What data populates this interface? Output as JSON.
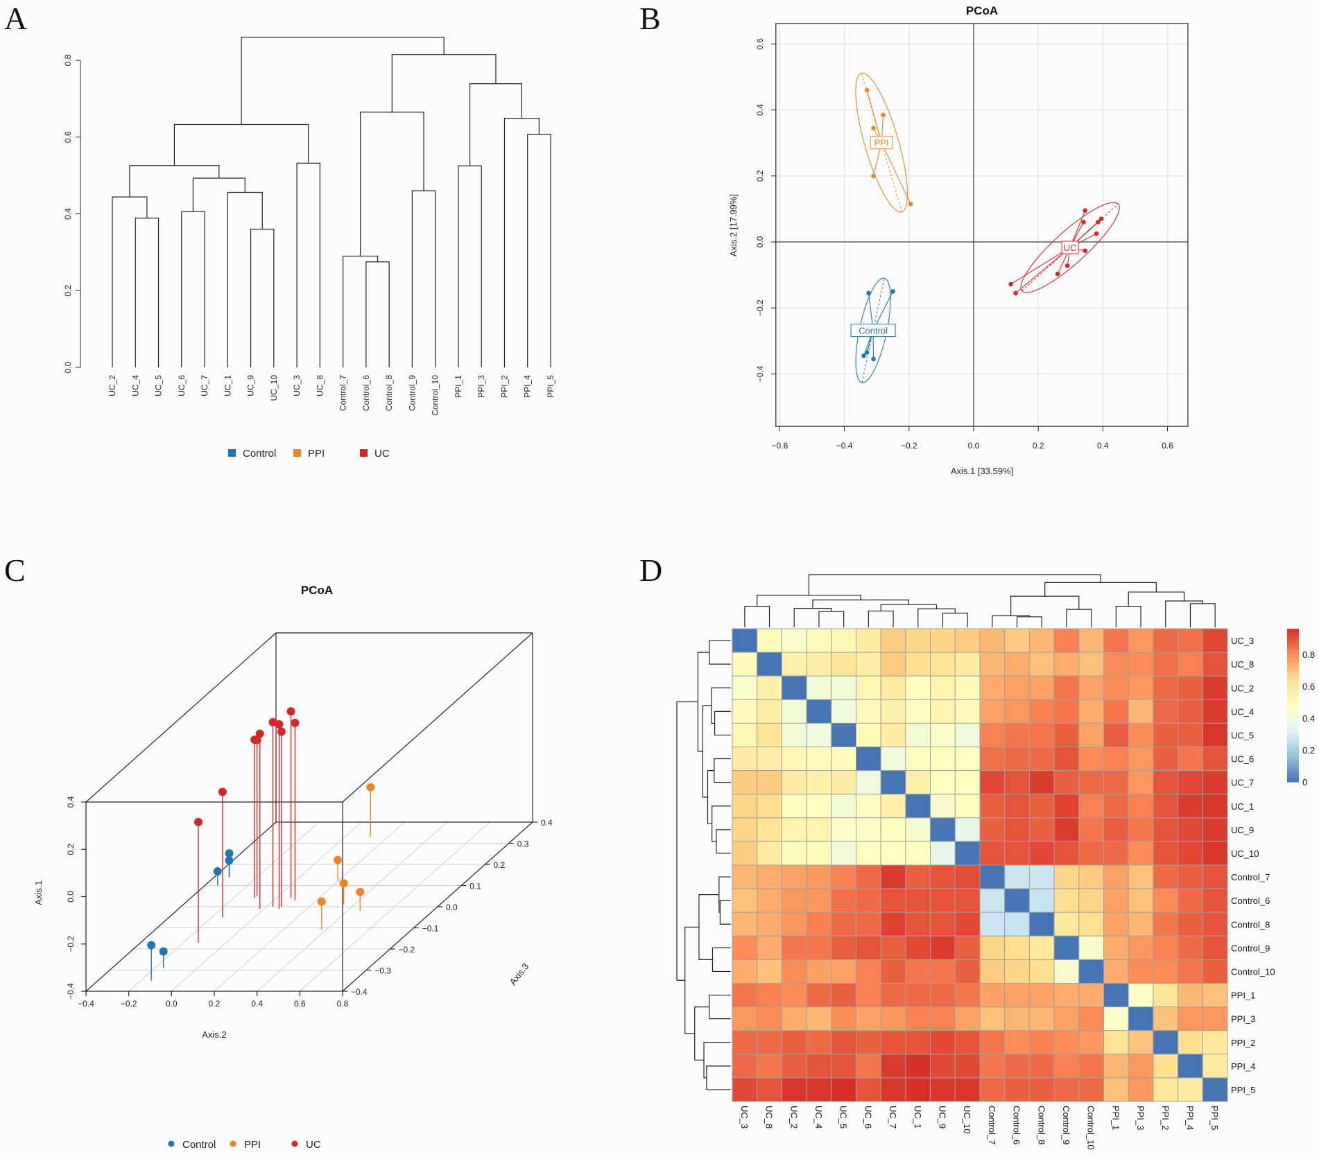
{
  "panels": {
    "a": "A",
    "b": "B",
    "c": "C",
    "d": "D"
  },
  "groups": [
    {
      "name": "Control",
      "color": "#1f77b4"
    },
    {
      "name": "PPI",
      "color": "#ef8426"
    },
    {
      "name": "UC",
      "color": "#d62728"
    }
  ],
  "chart_data": [
    {
      "type": "dendrogram",
      "ylim": [
        0,
        0.8
      ],
      "yticks": [
        0.0,
        0.2,
        0.4,
        0.6,
        0.8
      ],
      "leaves": [
        "UC_2",
        "UC_4",
        "UC_5",
        "UC_6",
        "UC_7",
        "UC_1",
        "UC_9",
        "UC_10",
        "UC_3",
        "UC_8",
        "Control_7",
        "Control_6",
        "Control_8",
        "Control_9",
        "Control_10",
        "PPI_1",
        "PPI_3",
        "PPI_2",
        "PPI_4",
        "PPI_5"
      ],
      "merges": [
        [
          "UC_4",
          "UC_5",
          0.389
        ],
        [
          "UC_2",
          0,
          0.444
        ],
        [
          "UC_6",
          "UC_7",
          0.406
        ],
        [
          "UC_9",
          "UC_10",
          0.36
        ],
        [
          "UC_1",
          3,
          0.456
        ],
        [
          2,
          4,
          0.493
        ],
        [
          1,
          5,
          0.526
        ],
        [
          "UC_3",
          "UC_8",
          0.532
        ],
        [
          6,
          7,
          0.633
        ],
        [
          "Control_6",
          "Control_8",
          0.275
        ],
        [
          "Control_7",
          9,
          0.29
        ],
        [
          "Control_9",
          "Control_10",
          0.46
        ],
        [
          10,
          11,
          0.665
        ],
        [
          "PPI_1",
          "PPI_3",
          0.525
        ],
        [
          "PPI_4",
          "PPI_5",
          0.607
        ],
        [
          "PPI_2",
          14,
          0.649
        ],
        [
          13,
          15,
          0.739
        ],
        [
          12,
          16,
          0.815
        ],
        [
          8,
          17,
          0.86
        ]
      ],
      "legend": [
        "Control",
        "PPI",
        "UC"
      ]
    },
    {
      "type": "scatter",
      "title": "PCoA",
      "xlabel": "Axis.1  [33.59%]",
      "ylabel": "Axis.2  [17.99%]",
      "xlim": [
        -0.612,
        0.663
      ],
      "ylim": [
        -0.559,
        0.662
      ],
      "xticks": [
        -0.6,
        -0.4,
        -0.2,
        0.0,
        0.2,
        0.4,
        0.6
      ],
      "yticks": [
        -0.4,
        -0.2,
        0.0,
        0.2,
        0.4,
        0.6
      ],
      "grid": true,
      "series": [
        {
          "name": "PPI",
          "points": [
            [
              -0.33,
              0.46
            ],
            [
              -0.28,
              0.385
            ],
            [
              -0.31,
              0.345
            ],
            [
              -0.31,
              0.2
            ],
            [
              -0.195,
              0.115
            ]
          ]
        },
        {
          "name": "UC",
          "points": [
            [
              0.345,
              0.095
            ],
            [
              0.34,
              0.06
            ],
            [
              0.385,
              0.06
            ],
            [
              0.395,
              0.07
            ],
            [
              0.38,
              0.025
            ],
            [
              0.345,
              -0.027
            ],
            [
              0.29,
              -0.072
            ],
            [
              0.26,
              -0.097
            ],
            [
              0.115,
              -0.128
            ],
            [
              0.13,
              -0.155
            ]
          ]
        },
        {
          "name": "Control",
          "points": [
            [
              -0.325,
              -0.155
            ],
            [
              -0.25,
              -0.15
            ],
            [
              -0.34,
              -0.345
            ],
            [
              -0.33,
              -0.335
            ],
            [
              -0.31,
              -0.355
            ]
          ]
        }
      ]
    },
    {
      "type": "scatter3d",
      "title": "PCoA",
      "xlabel": "Axis.2",
      "ylabel": "Axis.1",
      "zlabel": "Axis.3",
      "xlim": [
        -0.4,
        0.8
      ],
      "ylim": [
        -0.4,
        0.4
      ],
      "zlim": [
        -0.4,
        0.4
      ],
      "xticks": [
        -0.4,
        -0.2,
        0.0,
        0.2,
        0.4,
        0.6,
        0.8
      ],
      "yticks": [
        -0.4,
        -0.2,
        0.0,
        0.2,
        0.4
      ],
      "zticks": [
        -0.4,
        -0.3,
        -0.2,
        -0.1,
        0.0,
        0.1,
        0.2,
        0.3,
        0.4
      ],
      "point_order": "[Axis.2, Axis.1, Axis.3]",
      "series": [
        {
          "name": "Control",
          "points": [
            [
              -0.15,
              -0.25,
              -0.35
            ],
            [
              -0.16,
              -0.33,
              -0.29
            ],
            [
              -0.34,
              -0.34,
              0.1
            ],
            [
              -0.33,
              -0.3,
              0.14
            ],
            [
              -0.33,
              -0.33,
              0.14
            ]
          ]
        },
        {
          "name": "PPI",
          "points": [
            [
              0.12,
              -0.19,
              0.33
            ],
            [
              0.2,
              -0.31,
              0.12
            ],
            [
              0.35,
              -0.31,
              0.01
            ],
            [
              0.46,
              -0.32,
              -0.02
            ],
            [
              0.38,
              -0.28,
              -0.11
            ]
          ]
        },
        {
          "name": "UC",
          "points": [
            [
              -0.13,
              0.11,
              -0.17
            ],
            [
              -0.15,
              0.13,
              -0.05
            ],
            [
              -0.1,
              0.26,
              0.05
            ],
            [
              -0.1,
              0.27,
              0.04
            ],
            [
              -0.02,
              0.34,
              -0.01
            ],
            [
              0.03,
              0.38,
              0.0
            ],
            [
              0.07,
              0.38,
              -0.01
            ],
            [
              0.07,
              0.34,
              0.0
            ],
            [
              0.07,
              0.39,
              0.04
            ],
            [
              0.1,
              0.35,
              0.03
            ]
          ]
        }
      ],
      "legend": [
        "Control",
        "PPI",
        "UC"
      ]
    },
    {
      "type": "heatmap",
      "labels": [
        "UC_3",
        "UC_8",
        "UC_2",
        "UC_4",
        "UC_5",
        "UC_6",
        "UC_7",
        "UC_1",
        "UC_9",
        "UC_10",
        "Control_7",
        "Control_6",
        "Control_8",
        "Control_9",
        "Control_10",
        "PPI_1",
        "PPI_3",
        "PPI_2",
        "PPI_4",
        "PPI_5"
      ],
      "colorbar": {
        "range": [
          0,
          0.96
        ],
        "ticks": [
          0,
          0.2,
          0.4,
          0.6,
          0.8
        ],
        "colors": [
          "#4575b4",
          "#91bfdb",
          "#e0f3f8",
          "#ffffbf",
          "#fee090",
          "#fc8d59",
          "#d73027"
        ]
      },
      "values": [
        [
          0,
          0.5,
          0.45,
          0.5,
          0.52,
          0.58,
          0.68,
          0.66,
          0.66,
          0.68,
          0.72,
          0.68,
          0.72,
          0.82,
          0.72,
          0.84,
          0.78,
          0.86,
          0.85,
          0.92
        ],
        [
          0.5,
          0,
          0.55,
          0.57,
          0.62,
          0.57,
          0.68,
          0.64,
          0.62,
          0.58,
          0.72,
          0.74,
          0.7,
          0.74,
          0.7,
          0.8,
          0.8,
          0.85,
          0.82,
          0.9
        ],
        [
          0.45,
          0.55,
          0,
          0.42,
          0.42,
          0.52,
          0.58,
          0.48,
          0.54,
          0.5,
          0.74,
          0.76,
          0.76,
          0.84,
          0.76,
          0.8,
          0.78,
          0.86,
          0.88,
          0.94
        ],
        [
          0.5,
          0.57,
          0.42,
          0,
          0.4,
          0.5,
          0.55,
          0.48,
          0.54,
          0.5,
          0.76,
          0.78,
          0.82,
          0.84,
          0.74,
          0.84,
          0.72,
          0.86,
          0.88,
          0.94
        ],
        [
          0.52,
          0.62,
          0.42,
          0.4,
          0,
          0.5,
          0.58,
          0.42,
          0.46,
          0.4,
          0.82,
          0.84,
          0.84,
          0.88,
          0.76,
          0.88,
          0.8,
          0.88,
          0.88,
          0.95
        ],
        [
          0.58,
          0.57,
          0.52,
          0.5,
          0.5,
          0,
          0.4,
          0.48,
          0.48,
          0.48,
          0.85,
          0.86,
          0.86,
          0.9,
          0.8,
          0.82,
          0.78,
          0.88,
          0.84,
          0.9
        ],
        [
          0.68,
          0.68,
          0.58,
          0.55,
          0.58,
          0.4,
          0,
          0.55,
          0.48,
          0.48,
          0.92,
          0.9,
          0.94,
          0.88,
          0.86,
          0.86,
          0.78,
          0.9,
          0.92,
          0.94
        ],
        [
          0.66,
          0.64,
          0.48,
          0.48,
          0.42,
          0.48,
          0.55,
          0,
          0.44,
          0.48,
          0.88,
          0.9,
          0.88,
          0.93,
          0.82,
          0.86,
          0.82,
          0.9,
          0.94,
          0.95
        ],
        [
          0.66,
          0.62,
          0.54,
          0.54,
          0.46,
          0.46,
          0.48,
          0.44,
          0,
          0.36,
          0.88,
          0.9,
          0.88,
          0.94,
          0.84,
          0.88,
          0.84,
          0.9,
          0.92,
          0.94
        ],
        [
          0.68,
          0.58,
          0.5,
          0.5,
          0.4,
          0.48,
          0.48,
          0.48,
          0.36,
          0,
          0.9,
          0.9,
          0.92,
          0.9,
          0.86,
          0.86,
          0.8,
          0.9,
          0.92,
          0.95
        ],
        [
          0.72,
          0.74,
          0.76,
          0.78,
          0.82,
          0.86,
          0.94,
          0.88,
          0.9,
          0.91,
          0,
          0.28,
          0.28,
          0.66,
          0.68,
          0.76,
          0.7,
          0.86,
          0.88,
          0.9
        ],
        [
          0.7,
          0.74,
          0.78,
          0.78,
          0.85,
          0.86,
          0.9,
          0.9,
          0.9,
          0.9,
          0.28,
          0,
          0.27,
          0.64,
          0.66,
          0.76,
          0.7,
          0.8,
          0.86,
          0.9
        ],
        [
          0.72,
          0.74,
          0.78,
          0.82,
          0.86,
          0.86,
          0.93,
          0.9,
          0.9,
          0.92,
          0.28,
          0.27,
          0,
          0.6,
          0.64,
          0.76,
          0.72,
          0.84,
          0.88,
          0.9
        ],
        [
          0.8,
          0.74,
          0.84,
          0.84,
          0.88,
          0.9,
          0.88,
          0.92,
          0.94,
          0.88,
          0.66,
          0.64,
          0.6,
          0,
          0.44,
          0.74,
          0.78,
          0.82,
          0.86,
          0.9
        ],
        [
          0.74,
          0.7,
          0.8,
          0.76,
          0.76,
          0.82,
          0.88,
          0.84,
          0.84,
          0.88,
          0.68,
          0.66,
          0.64,
          0.44,
          0,
          0.74,
          0.8,
          0.8,
          0.84,
          0.88
        ],
        [
          0.84,
          0.82,
          0.8,
          0.86,
          0.88,
          0.82,
          0.86,
          0.86,
          0.86,
          0.84,
          0.76,
          0.76,
          0.76,
          0.74,
          0.74,
          0,
          0.46,
          0.62,
          0.72,
          0.7
        ],
        [
          0.78,
          0.8,
          0.74,
          0.72,
          0.8,
          0.76,
          0.78,
          0.82,
          0.82,
          0.76,
          0.7,
          0.72,
          0.72,
          0.76,
          0.8,
          0.46,
          0,
          0.7,
          0.78,
          0.78
        ],
        [
          0.86,
          0.86,
          0.88,
          0.86,
          0.9,
          0.88,
          0.9,
          0.9,
          0.92,
          0.9,
          0.84,
          0.8,
          0.82,
          0.8,
          0.78,
          0.62,
          0.7,
          0,
          0.64,
          0.6
        ],
        [
          0.86,
          0.84,
          0.88,
          0.9,
          0.9,
          0.84,
          0.94,
          0.96,
          0.92,
          0.92,
          0.84,
          0.86,
          0.86,
          0.82,
          0.84,
          0.72,
          0.78,
          0.64,
          0,
          0.58
        ],
        [
          0.92,
          0.9,
          0.95,
          0.95,
          0.96,
          0.9,
          0.95,
          0.96,
          0.95,
          0.95,
          0.86,
          0.88,
          0.88,
          0.86,
          0.86,
          0.7,
          0.78,
          0.6,
          0.58,
          0
        ]
      ],
      "tree_merges": [
        [
          "UC_3",
          "UC_8",
          0.4
        ],
        [
          "UC_4",
          "UC_5",
          0.3
        ],
        [
          "UC_2",
          1,
          0.36
        ],
        [
          "UC_6",
          "UC_7",
          0.31
        ],
        [
          "UC_9",
          "UC_10",
          0.27
        ],
        [
          "UC_1",
          4,
          0.35
        ],
        [
          3,
          5,
          0.43
        ],
        [
          2,
          6,
          0.52
        ],
        [
          0,
          7,
          0.61
        ],
        [
          "Control_6",
          "Control_8",
          0.2
        ],
        [
          "Control_7",
          9,
          0.22
        ],
        [
          "Control_9",
          "Control_10",
          0.34
        ],
        [
          10,
          11,
          0.59
        ],
        [
          "PPI_1",
          "PPI_3",
          0.4
        ],
        [
          "PPI_4",
          "PPI_5",
          0.45
        ],
        [
          "PPI_2",
          14,
          0.5
        ],
        [
          13,
          15,
          0.67
        ],
        [
          12,
          16,
          0.85
        ],
        [
          8,
          17,
          1.0
        ]
      ]
    }
  ]
}
